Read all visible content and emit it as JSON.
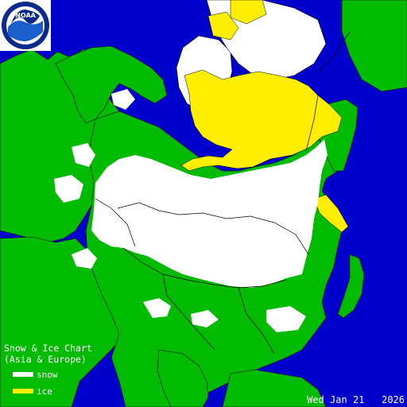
{
  "logo": {
    "text": "NOAA",
    "icon": "noaa-logo"
  },
  "legend": {
    "title_line1": "Snow & Ice Chart",
    "title_line2": "(Asia & Europe)",
    "items": [
      {
        "label": "snow",
        "color": "#ffffff"
      },
      {
        "label": "ice",
        "color": "#ffee00"
      }
    ]
  },
  "date": {
    "day": "Wed",
    "month": "Jan",
    "daynum": "21",
    "year": "2026"
  },
  "colors": {
    "ocean": "#0000cc",
    "land": "#00bb00",
    "snow": "#ffffff",
    "ice": "#ffee00",
    "borders": "#000000"
  }
}
